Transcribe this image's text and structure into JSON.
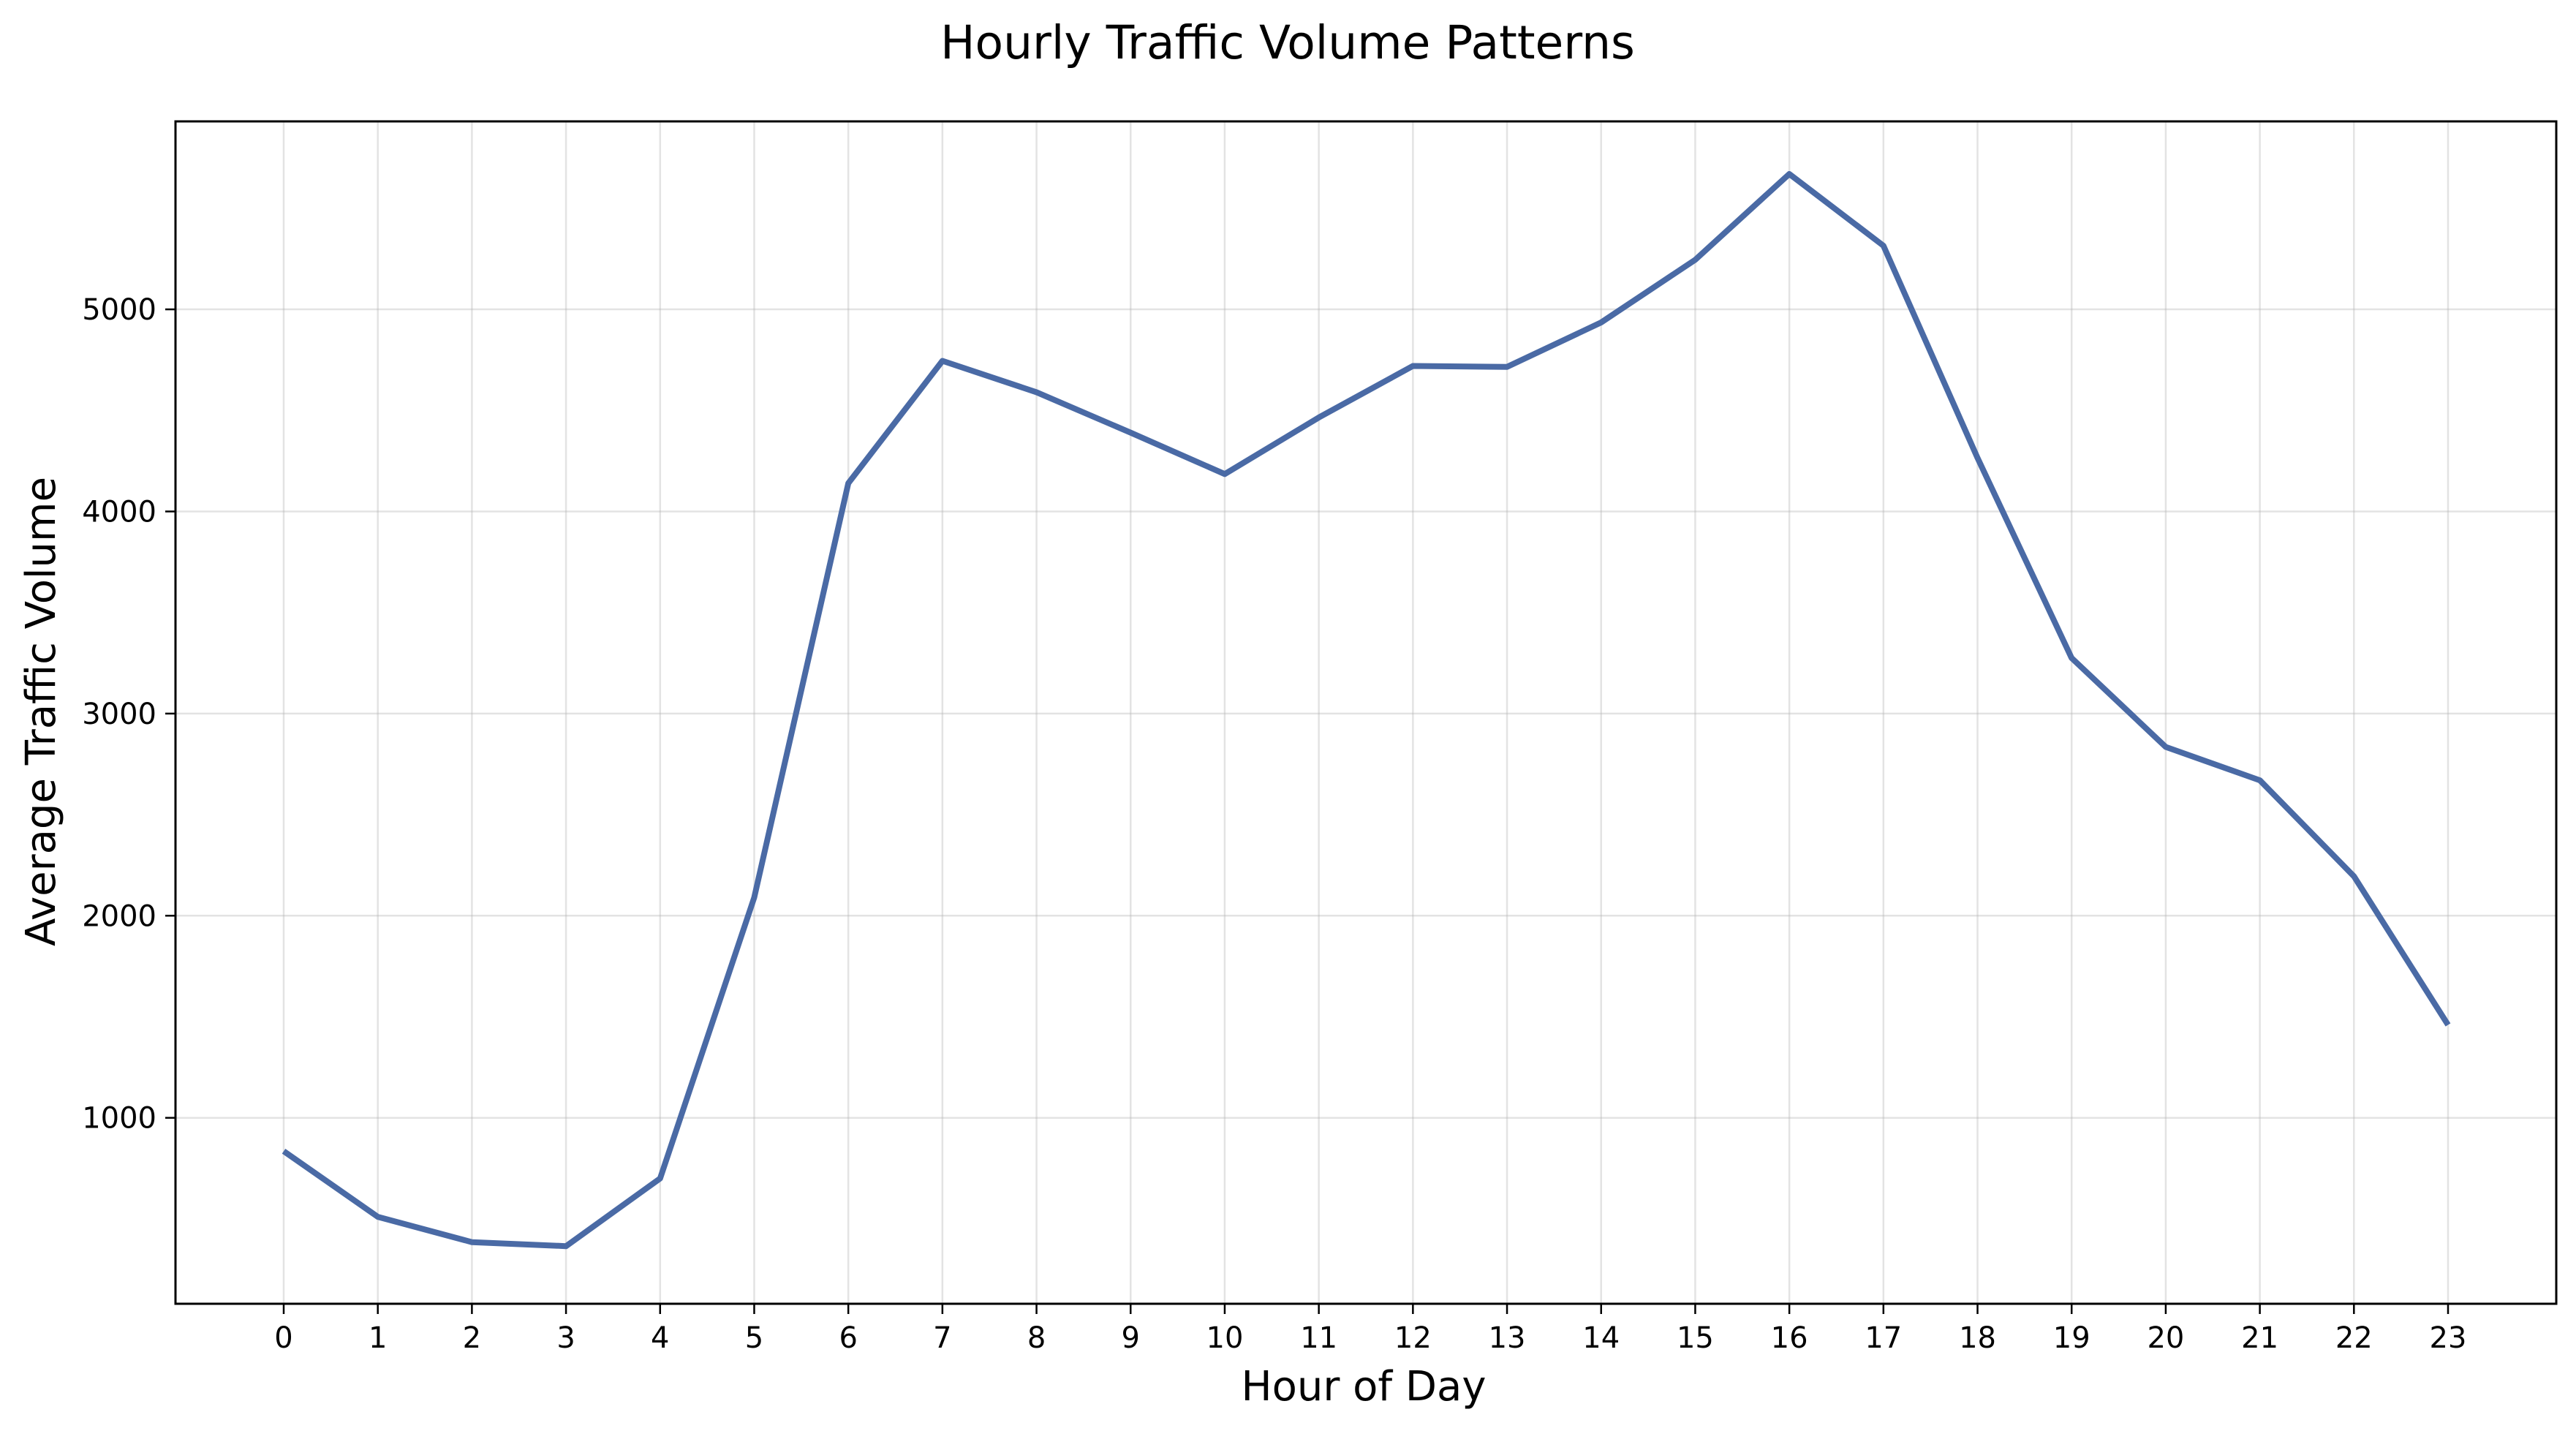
{
  "chart_data": {
    "type": "line",
    "title": "Hourly Traffic Volume Patterns",
    "xlabel": "Hour of Day",
    "ylabel": "Average Traffic Volume",
    "grid": true,
    "xlim": [
      -1.15,
      24.15
    ],
    "ylim": [
      80,
      5930
    ],
    "x_ticks": [
      "0",
      "1",
      "2",
      "3",
      "4",
      "5",
      "6",
      "7",
      "8",
      "9",
      "10",
      "11",
      "12",
      "13",
      "14",
      "15",
      "16",
      "17",
      "18",
      "19",
      "20",
      "21",
      "22",
      "23"
    ],
    "y_ticks": [
      "1000",
      "2000",
      "3000",
      "4000",
      "5000"
    ],
    "y_tick_values": [
      1000,
      2000,
      3000,
      4000,
      5000
    ],
    "x": [
      0,
      1,
      2,
      3,
      4,
      5,
      6,
      7,
      8,
      9,
      10,
      11,
      12,
      13,
      14,
      15,
      16,
      17,
      18,
      19,
      20,
      21,
      22,
      23
    ],
    "series": [
      {
        "name": "Average Traffic Volume",
        "color": "#4a6aa5",
        "values": [
          835,
          510,
          385,
          365,
          700,
          2090,
          4140,
          4745,
          4590,
          4390,
          4185,
          4465,
          4720,
          4715,
          4935,
          5245,
          5670,
          5315,
          4265,
          3275,
          2835,
          2670,
          2195,
          1460
        ]
      }
    ]
  }
}
